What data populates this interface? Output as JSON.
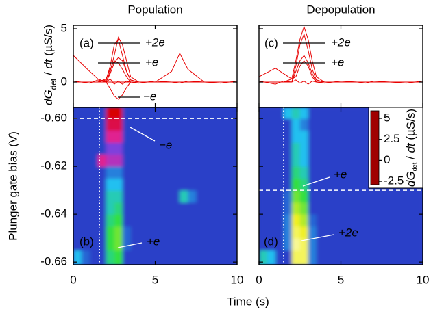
{
  "chart_data": [
    {
      "type": "line",
      "title": "Population",
      "panel_label": "(a)",
      "y_label": [
        "dG",
        "det",
        " / ",
        "dt",
        " (µS/s)"
      ],
      "x": [
        0,
        1,
        1.5,
        2,
        2.25,
        2.5,
        2.75,
        3,
        3.25,
        3.5,
        4,
        5,
        6,
        6.5,
        7,
        8,
        9,
        10
      ],
      "series": [
        {
          "color": "#e80000",
          "values": [
            0,
            0,
            0,
            0,
            1,
            2.5,
            4.2,
            3.5,
            2,
            0.5,
            0,
            0,
            0,
            0,
            0,
            0,
            0,
            0
          ]
        },
        {
          "color": "#e80000",
          "values": [
            0,
            0,
            0,
            0.2,
            1.5,
            3.5,
            4,
            2.5,
            1,
            0.2,
            0,
            0,
            0,
            0,
            0,
            0,
            0,
            0
          ]
        },
        {
          "color": "#e80000",
          "values": [
            0,
            0,
            0,
            0,
            0.8,
            1.8,
            2.3,
            2,
            1,
            0.2,
            0,
            0,
            0,
            0,
            0,
            0,
            0,
            0
          ]
        },
        {
          "color": "#e80000",
          "values": [
            0,
            0,
            0,
            0.3,
            1.2,
            2,
            1.8,
            1.2,
            0.5,
            0,
            0,
            0,
            0,
            0,
            0,
            0,
            0,
            0
          ]
        },
        {
          "color": "#e80000",
          "values": [
            0,
            0,
            0,
            0,
            -0.6,
            -1.3,
            -1.6,
            -1.2,
            -0.5,
            0,
            0,
            0,
            0,
            0,
            0,
            0,
            0,
            0
          ]
        },
        {
          "color": "#e80000",
          "values": [
            2.5,
            1,
            0.3,
            0,
            0,
            0,
            0,
            0,
            0,
            0,
            0,
            0,
            1,
            2.7,
            1.2,
            0,
            0,
            0
          ]
        },
        {
          "color": "#e80000",
          "values": [
            0.1,
            -0.1,
            0.2,
            0,
            0.3,
            -0.2,
            0.1,
            -0.2,
            0.1,
            0,
            -0.1,
            0.1,
            0,
            -0.1,
            0.1,
            0,
            -0.1,
            0.1
          ]
        }
      ],
      "xlim": [
        0,
        10
      ],
      "ylim": [
        -2.37,
        5.32
      ],
      "yticks": [
        0,
        5
      ],
      "annotations": [
        "+2e",
        "+e",
        "−e"
      ]
    },
    {
      "type": "line",
      "title": "Depopulation",
      "panel_label": "(c)",
      "x": [
        0,
        1,
        1.5,
        2,
        2.25,
        2.5,
        2.75,
        3,
        3.25,
        3.5,
        4,
        5,
        6,
        6.5,
        7,
        8,
        9,
        10
      ],
      "series": [
        {
          "color": "#e80000",
          "values": [
            0,
            0,
            0,
            0.3,
            2,
            4,
            5.2,
            4,
            2,
            0.5,
            0,
            0,
            0,
            0,
            0,
            0,
            0,
            0
          ]
        },
        {
          "color": "#e80000",
          "values": [
            0,
            0,
            0,
            0,
            1.5,
            3.5,
            4.5,
            3,
            1.2,
            0.2,
            0,
            0,
            0,
            0,
            0,
            0,
            0,
            0
          ]
        },
        {
          "color": "#e80000",
          "values": [
            0,
            0,
            0,
            0,
            1,
            2,
            2.5,
            1.8,
            0.8,
            0,
            0,
            0,
            0,
            0,
            0,
            0,
            0,
            0
          ]
        },
        {
          "color": "#e80000",
          "values": [
            0.5,
            1.3,
            0.8,
            0.3,
            0.5,
            1.5,
            2,
            1.5,
            0.5,
            0,
            0,
            0,
            0,
            0,
            0,
            0,
            0,
            0
          ]
        },
        {
          "color": "#e80000",
          "values": [
            0.1,
            -0.2,
            0.1,
            0,
            0.2,
            -0.1,
            0.1,
            -0.2,
            0.1,
            0,
            -0.1,
            0.1,
            0,
            -0.1,
            0.1,
            0,
            -0.1,
            0.1
          ]
        }
      ],
      "xlim": [
        0,
        10
      ],
      "ylim": [
        -2.37,
        5.32
      ],
      "annotations": [
        "+2e",
        "+e"
      ]
    },
    {
      "type": "heatmap",
      "panel_label": "(b)",
      "y_label": "Plunger gate bias (V)",
      "x_label": "Time (s)",
      "xbins": [
        0,
        0.5,
        1,
        1.5,
        2,
        2.5,
        3,
        3.5,
        4,
        4.5,
        5,
        5.5,
        6,
        6.5,
        7,
        7.5,
        8,
        8.5,
        9,
        9.5,
        10
      ],
      "ybins": [
        -0.6611,
        -0.655,
        -0.65,
        -0.645,
        -0.64,
        -0.635,
        -0.63,
        -0.625,
        -0.62,
        -0.615,
        -0.61,
        -0.605,
        -0.6,
        -0.5954
      ],
      "z": [
        [
          1,
          0.3,
          0,
          0,
          2,
          2.5,
          0,
          0,
          0,
          0,
          0,
          0,
          0,
          0,
          0,
          0,
          0,
          0,
          0,
          0
        ],
        [
          0,
          0,
          0,
          0,
          2.5,
          3,
          0.3,
          0,
          0,
          0,
          0,
          0,
          0,
          0,
          0,
          0,
          0,
          0,
          0,
          0
        ],
        [
          0,
          0,
          0,
          0,
          2.5,
          3,
          0.3,
          0,
          0,
          0,
          0,
          0,
          0,
          0,
          0,
          0,
          0,
          0,
          0,
          0
        ],
        [
          0,
          0,
          0,
          0,
          2,
          2.5,
          0,
          0,
          0,
          0,
          0,
          0,
          0,
          0,
          0,
          0,
          0,
          0,
          0,
          0
        ],
        [
          0,
          0,
          0,
          0,
          1.5,
          2,
          0,
          0,
          0,
          0,
          0,
          0,
          0,
          0,
          0,
          0,
          0,
          0,
          0,
          0
        ],
        [
          0,
          0,
          0,
          0,
          1.5,
          1.5,
          0,
          0,
          0,
          0,
          0,
          0,
          0,
          1.5,
          0.5,
          0,
          0,
          0,
          0,
          0
        ],
        [
          0,
          0,
          0,
          0,
          1,
          1,
          0,
          0,
          0,
          0,
          0,
          0,
          0,
          0,
          0,
          0,
          0,
          0,
          0,
          0
        ],
        [
          0,
          0,
          0,
          0,
          0.5,
          0.5,
          0,
          0,
          0,
          0,
          0,
          0,
          0,
          0,
          0,
          0,
          0,
          0,
          0,
          0
        ],
        [
          0,
          0,
          0,
          -1.5,
          -1,
          -1,
          0,
          0,
          0,
          0,
          0,
          0,
          0,
          0,
          0,
          0,
          0,
          0,
          0,
          0
        ],
        [
          0,
          0,
          0,
          0,
          -0.5,
          -0.5,
          0,
          0,
          0,
          0,
          0,
          0,
          0,
          0,
          0,
          0,
          0,
          0,
          0,
          0
        ],
        [
          0,
          0,
          0,
          0,
          -1.5,
          -1.5,
          0,
          0,
          0,
          0,
          0,
          0,
          0,
          0,
          0,
          0,
          0,
          0,
          0,
          0
        ],
        [
          0,
          0,
          0,
          0,
          -2,
          -2,
          0,
          0,
          0,
          0,
          0,
          0,
          0,
          0,
          0,
          0,
          0,
          0,
          0,
          0
        ],
        [
          0,
          0,
          0,
          0,
          -2.5,
          -2.5,
          0,
          0,
          0,
          0,
          0,
          0,
          0,
          0,
          0,
          0,
          0,
          0,
          0,
          0
        ]
      ],
      "xlim": [
        0,
        10
      ],
      "ylim": [
        -0.6611,
        -0.5954
      ],
      "xticks": [
        0,
        5,
        10
      ],
      "yticks": [
        {
          "value": -0.66,
          "label": "-0.66"
        },
        {
          "value": -0.64,
          "label": "-0.64"
        },
        {
          "value": -0.62,
          "label": "-0.62"
        },
        {
          "value": -0.6,
          "label": "-0.60"
        }
      ],
      "hline": -0.6,
      "vline": 1.6,
      "annotations": [
        "−e",
        "+e"
      ]
    },
    {
      "type": "heatmap",
      "panel_label": "(d)",
      "xbins": [
        0,
        0.5,
        1,
        1.5,
        2,
        2.5,
        3,
        3.5,
        4,
        4.5,
        5,
        5.5,
        6,
        6.5,
        7,
        7.5,
        8,
        8.5,
        9,
        9.5,
        10
      ],
      "ybins": [
        -0.6611,
        -0.655,
        -0.65,
        -0.645,
        -0.64,
        -0.635,
        -0.63,
        -0.625,
        -0.62,
        -0.615,
        -0.61,
        -0.605,
        -0.6,
        -0.5954
      ],
      "z": [
        [
          1.5,
          1,
          0,
          0,
          4.5,
          4.5,
          0.5,
          0,
          0,
          0,
          0,
          0,
          0,
          0,
          0,
          0,
          0,
          0,
          0,
          0
        ],
        [
          0,
          0,
          0,
          0.5,
          5,
          4.5,
          0.5,
          0,
          0,
          0,
          0,
          0,
          0,
          0,
          0,
          0,
          0,
          0,
          0,
          0
        ],
        [
          0,
          0,
          0,
          0.5,
          4.5,
          4,
          0.5,
          0,
          0,
          0,
          0,
          0,
          0,
          0,
          0,
          0,
          0,
          0,
          0,
          0
        ],
        [
          0,
          0,
          0,
          0.5,
          4,
          3.5,
          0.3,
          0,
          0,
          0,
          0,
          0,
          0,
          0,
          0,
          0,
          0,
          0,
          0,
          0
        ],
        [
          0,
          0,
          0,
          0.3,
          3.5,
          3,
          0,
          0,
          0,
          0,
          0,
          0,
          0,
          0,
          0,
          0,
          0,
          0,
          0,
          0
        ],
        [
          0,
          0,
          0,
          0.3,
          3,
          2.5,
          0,
          0,
          0,
          0,
          0,
          0,
          0,
          0,
          0,
          0,
          0,
          0,
          0,
          0
        ],
        [
          0,
          0,
          0,
          0,
          2.5,
          2,
          0,
          0,
          0,
          0,
          0,
          0,
          0,
          0,
          0,
          0,
          0,
          0,
          0,
          0
        ],
        [
          0,
          0,
          0,
          0,
          2,
          1.5,
          0,
          0,
          0,
          0,
          0,
          0,
          0,
          0,
          0,
          0,
          0,
          0,
          0,
          0
        ],
        [
          0,
          0,
          0,
          0,
          1.5,
          1,
          0,
          0,
          0,
          0,
          0,
          0,
          0,
          0,
          0,
          0,
          0,
          0,
          0,
          0
        ],
        [
          0,
          0,
          0,
          0,
          1.5,
          1,
          0,
          0,
          0,
          0,
          0,
          0,
          0,
          0,
          0,
          0,
          0,
          0,
          0,
          0
        ],
        [
          0,
          0,
          0,
          0,
          1,
          1,
          0,
          0,
          0,
          0,
          0,
          0,
          0,
          0,
          0,
          0,
          0,
          0,
          0,
          0
        ],
        [
          0,
          0,
          0,
          0,
          1,
          0.5,
          0,
          0,
          0,
          0,
          0,
          0,
          0,
          0,
          0,
          0,
          0,
          0,
          0,
          0
        ],
        [
          0,
          0,
          0,
          1,
          1.5,
          1,
          0,
          0,
          0,
          0,
          0,
          0,
          0,
          0,
          0,
          0,
          0,
          0,
          0,
          0
        ]
      ],
      "xlim": [
        0,
        10
      ],
      "ylim": [
        -0.6611,
        -0.5954
      ],
      "xticks": [
        0,
        5,
        10
      ],
      "hline": -0.63,
      "vline": 1.5,
      "annotations": [
        "+e",
        "+2e"
      ],
      "colormap": [
        [
          -2.9,
          "#a00000"
        ],
        [
          -2.5,
          "#d80000"
        ],
        [
          -1.5,
          "#e02090"
        ],
        [
          -0.6,
          "#9040e0"
        ],
        [
          0,
          "#2a40c8"
        ],
        [
          1,
          "#20c0f0"
        ],
        [
          2.5,
          "#30e040"
        ],
        [
          4,
          "#f0f020"
        ],
        [
          5.9,
          "#ffffff"
        ]
      ],
      "colorbar": {
        "label": [
          "dG",
          "det",
          " / ",
          "dt",
          " (µS/s)"
        ],
        "ticks": [
          5,
          2.5,
          0,
          -2.5
        ],
        "lim": [
          -2.9,
          5.9
        ]
      }
    }
  ]
}
